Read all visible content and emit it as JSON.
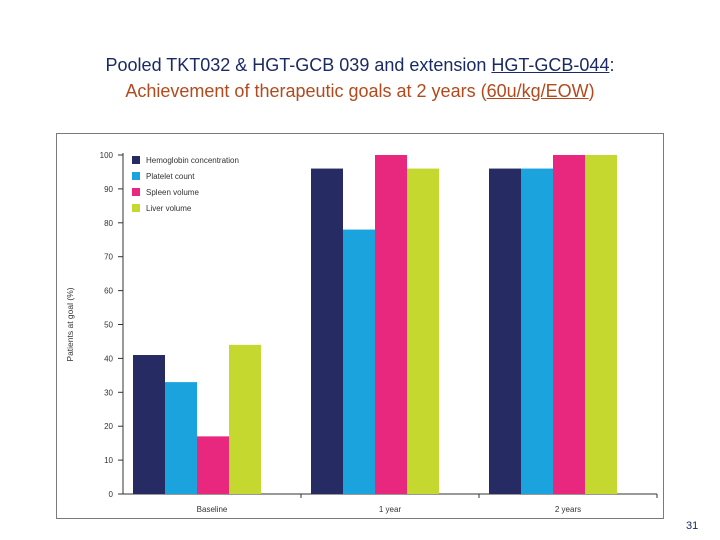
{
  "slide": {
    "title_line1": {
      "a": "Pooled TKT032 & HGT-GCB 039 and extension ",
      "b": "HGT-GCB-044",
      "c": ":"
    },
    "title_line2": {
      "a": "Achievement of therapeutic goals at 2 years (",
      "b": "60u/kg/EOW",
      "c": ")"
    },
    "page_number": "31"
  },
  "chart_data": {
    "type": "bar",
    "categories": [
      "Baseline",
      "1 year",
      "2 years"
    ],
    "series": [
      {
        "name": "Hemoglobin concentration",
        "color": "#262b63",
        "values": [
          41,
          96,
          96
        ]
      },
      {
        "name": "Platelet count",
        "color": "#1aa3dc",
        "values": [
          33,
          78,
          96
        ]
      },
      {
        "name": "Spleen volume",
        "color": "#e8277f",
        "values": [
          17,
          100,
          100
        ]
      },
      {
        "name": "Liver volume",
        "color": "#c5d82f",
        "values": [
          44,
          96,
          100
        ]
      }
    ],
    "ylabel": "Patients at goal (%)",
    "xlabel": "",
    "ylim": [
      0,
      100
    ],
    "yticks": [
      "0",
      "10",
      "20",
      "30",
      "40",
      "50",
      "60",
      "70",
      "80",
      "90",
      "100"
    ],
    "legend_position": "top-left",
    "grid": false
  }
}
